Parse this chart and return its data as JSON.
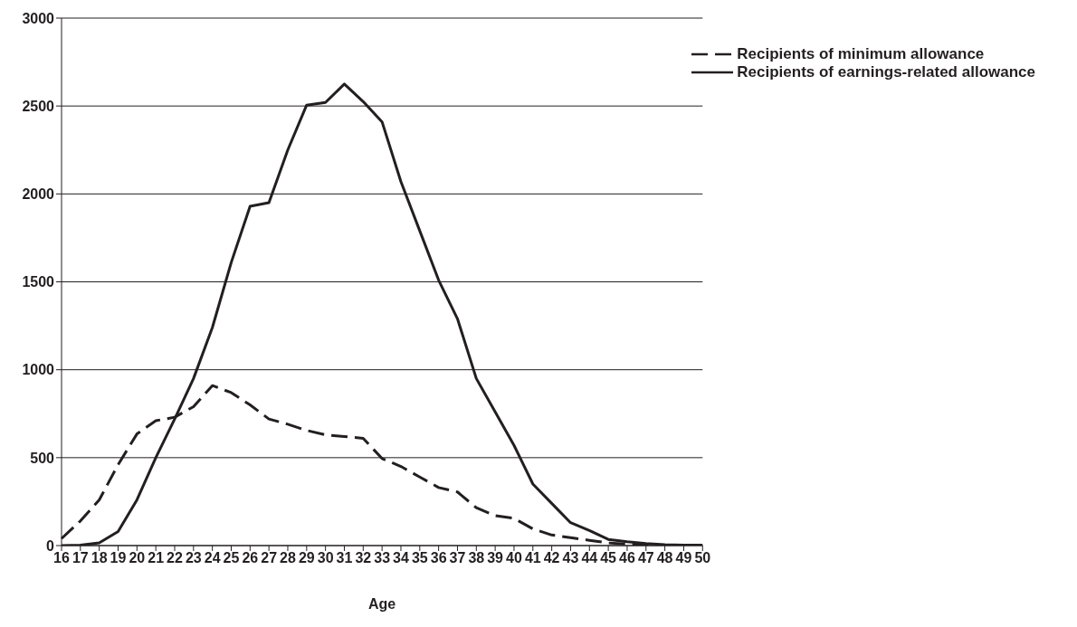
{
  "chart_data": {
    "type": "line",
    "xlabel": "Age",
    "categories": [
      "16",
      "17",
      "18",
      "19",
      "20",
      "21",
      "22",
      "23",
      "24",
      "25",
      "26",
      "27",
      "28",
      "29",
      "30",
      "31",
      "32",
      "33",
      "34",
      "35",
      "36",
      "37",
      "38",
      "39",
      "40",
      "41",
      "42",
      "43",
      "44",
      "45",
      "46",
      "47",
      "48",
      "49",
      "50"
    ],
    "series": [
      {
        "name": "Recipients of minimum allowance",
        "color": "#231f20",
        "line_style": "dashed",
        "values": [
          40,
          140,
          260,
          460,
          635,
          710,
          730,
          790,
          910,
          870,
          800,
          720,
          690,
          655,
          630,
          620,
          610,
          495,
          450,
          390,
          330,
          305,
          215,
          170,
          155,
          95,
          60,
          45,
          30,
          15,
          8,
          4,
          2,
          1,
          0
        ]
      },
      {
        "name": "Recipients of earnings-related allowance",
        "color": "#231f20",
        "line_style": "solid",
        "values": [
          0,
          2,
          15,
          80,
          260,
          500,
          720,
          950,
          1240,
          1610,
          1930,
          1950,
          2250,
          2505,
          2520,
          2625,
          2525,
          2410,
          2070,
          1790,
          1510,
          1290,
          950,
          760,
          570,
          350,
          240,
          130,
          85,
          35,
          22,
          12,
          5,
          2,
          2
        ]
      }
    ],
    "ylim": [
      0,
      3000
    ],
    "yticks": [
      0,
      500,
      1000,
      1500,
      2000,
      2500,
      3000
    ],
    "grid": "y",
    "legend": "top right",
    "marker": "none"
  }
}
